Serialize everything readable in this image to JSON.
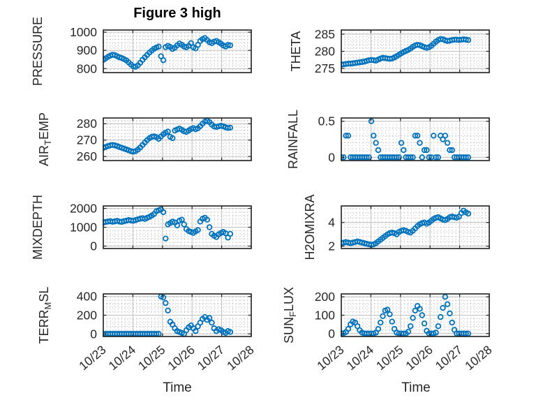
{
  "title": "Figure 3 high",
  "xlabel": "Time",
  "colors": {
    "marker": "#0072BD",
    "axis": "#202020",
    "text": "#262626",
    "grid": "#c2c2c2",
    "minor_grid": "#aeaeae"
  },
  "chart_data": {
    "type": "scatter",
    "title": "Figure 3 high",
    "xlabel": "Time",
    "x_unit": "days since 10/23 00:00",
    "xlim": [
      0,
      5
    ],
    "x_tick_labels": [
      "10/23",
      "10/24",
      "10/25",
      "10/26",
      "10/27",
      "10/28"
    ],
    "grid": "major solid + minor dotted",
    "x": [
      0.0,
      0.078,
      0.156,
      0.234,
      0.312,
      0.39,
      0.468,
      0.546,
      0.624,
      0.702,
      0.78,
      0.858,
      0.936,
      1.014,
      1.092,
      1.17,
      1.248,
      1.326,
      1.404,
      1.482,
      1.56,
      1.638,
      1.716,
      1.794,
      1.872,
      1.95,
      2.028,
      2.106,
      2.184,
      2.262,
      2.34,
      2.418,
      2.496,
      2.574,
      2.652,
      2.73,
      2.808,
      2.886,
      2.964,
      3.042,
      3.12,
      3.198,
      3.276,
      3.354,
      3.432,
      3.51,
      3.588,
      3.666,
      3.744,
      3.822,
      3.9,
      3.978,
      4.056,
      4.134,
      4.212,
      4.29
    ],
    "subplots": [
      {
        "name": "PRESSURE",
        "label": "PRESSURE",
        "col": 0,
        "row": 0,
        "ylabel_parts": [
          {
            "text": "PRESSURE"
          }
        ],
        "yticks": [
          800,
          900,
          1000
        ],
        "ylim": [
          778,
          1012
        ],
        "y": [
          848,
          856,
          864,
          871,
          876,
          874,
          868,
          862,
          858,
          852,
          845,
          834,
          822,
          812,
          810,
          818,
          832,
          848,
          862,
          875,
          888,
          899,
          909,
          916,
          921,
          868,
          846,
          918,
          925,
          919,
          908,
          915,
          928,
          938,
          931,
          921,
          917,
          925,
          940,
          917,
          911,
          930,
          952,
          962,
          968,
          957,
          945,
          940,
          948,
          952,
          945,
          937,
          927,
          921,
          930,
          928
        ]
      },
      {
        "name": "AIR_TEMP",
        "label": "AIR_TEMP",
        "col": 0,
        "row": 1,
        "ylabel_parts": [
          {
            "text": "AIR"
          },
          {
            "text": "T",
            "sub": true
          },
          {
            "text": "EMP"
          }
        ],
        "yticks": [
          260,
          270,
          280
        ],
        "ylim": [
          257.5,
          283.5
        ],
        "y": [
          265.2,
          265.8,
          266.3,
          266.8,
          267.0,
          266.8,
          266.3,
          265.8,
          265.3,
          264.8,
          264.3,
          263.8,
          263.2,
          262.9,
          263.3,
          264.2,
          265.5,
          267.0,
          268.5,
          270.0,
          271.2,
          272.0,
          272.3,
          271.8,
          270.8,
          272.2,
          273.5,
          274.5,
          275.2,
          272.0,
          271.2,
          275.8,
          276.5,
          277.0,
          276.3,
          275.4,
          275.0,
          275.8,
          276.8,
          277.3,
          276.6,
          277.2,
          278.5,
          280.0,
          281.3,
          281.8,
          281.0,
          279.5,
          278.3,
          278.0,
          278.4,
          278.8,
          278.4,
          277.8,
          277.4,
          277.6
        ]
      },
      {
        "name": "MIXDEPTH",
        "label": "MIXDEPTH",
        "col": 0,
        "row": 2,
        "ylabel_parts": [
          {
            "text": "MIXDEPTH"
          }
        ],
        "yticks": [
          0,
          1000,
          2000
        ],
        "ylim": [
          -130,
          2130
        ],
        "y": [
          1250,
          1280,
          1300,
          1320,
          1290,
          1310,
          1340,
          1300,
          1280,
          1320,
          1350,
          1380,
          1360,
          1340,
          1380,
          1420,
          1450,
          1480,
          1440,
          1500,
          1550,
          1620,
          1700,
          1850,
          1900,
          1950,
          1800,
          400,
          1150,
          1220,
          1300,
          1250,
          1100,
          1350,
          1400,
          1150,
          900,
          800,
          750,
          700,
          780,
          850,
          1300,
          1450,
          1500,
          1400,
          1000,
          650,
          550,
          480,
          620,
          700,
          750,
          680,
          450,
          650
        ]
      },
      {
        "name": "TERR_MSL",
        "label": "TERR_MSL",
        "col": 0,
        "row": 3,
        "ylabel_parts": [
          {
            "text": "TERR"
          },
          {
            "text": "M",
            "sub": true
          },
          {
            "text": "SL"
          }
        ],
        "yticks": [
          0,
          200,
          400
        ],
        "ylim": [
          -28,
          428
        ],
        "y": [
          0,
          0,
          0,
          0,
          0,
          0,
          0,
          0,
          0,
          0,
          0,
          0,
          0,
          0,
          0,
          0,
          0,
          0,
          0,
          0,
          0,
          0,
          0,
          0,
          0,
          400,
          390,
          330,
          250,
          130,
          100,
          60,
          30,
          20,
          10,
          0,
          40,
          70,
          90,
          60,
          30,
          80,
          120,
          160,
          180,
          150,
          170,
          120,
          60,
          30,
          50,
          40,
          20,
          10,
          30,
          20
        ]
      },
      {
        "name": "THETA",
        "label": "THETA",
        "col": 1,
        "row": 0,
        "ylabel_parts": [
          {
            "text": "THETA"
          }
        ],
        "yticks": [
          275,
          280,
          285
        ],
        "ylim": [
          273.8,
          286.2
        ],
        "y": [
          276.1,
          276.2,
          276.3,
          276.4,
          276.4,
          276.5,
          276.6,
          276.7,
          276.8,
          276.9,
          277.0,
          277.2,
          277.4,
          277.5,
          277.4,
          277.3,
          277.6,
          277.9,
          278.1,
          278.0,
          277.9,
          277.8,
          277.9,
          278.2,
          278.6,
          279.0,
          279.4,
          279.8,
          280.1,
          280.4,
          280.8,
          281.3,
          281.7,
          281.9,
          281.8,
          281.5,
          281.2,
          281.0,
          281.2,
          281.6,
          282.2,
          282.8,
          283.3,
          283.6,
          283.5,
          283.2,
          283.0,
          283.1,
          283.3,
          283.4,
          283.4,
          283.3,
          283.4,
          283.5,
          283.4,
          283.3
        ]
      },
      {
        "name": "RAINFALL",
        "label": "RAINFALL",
        "col": 1,
        "row": 1,
        "ylabel_parts": [
          {
            "text": "RAINFALL"
          }
        ],
        "yticks": [
          0,
          0.5
        ],
        "ylim": [
          -0.045,
          0.545
        ],
        "y": [
          0,
          0,
          0.3,
          0.3,
          0,
          0,
          0,
          0,
          0,
          0,
          0,
          0,
          0,
          0.5,
          0.3,
          0.2,
          0.1,
          0,
          0,
          0,
          0,
          0,
          0,
          0,
          0,
          0,
          0.2,
          0.1,
          0,
          0,
          0,
          0,
          0.3,
          0.3,
          0.2,
          0,
          0.1,
          0.1,
          0,
          0,
          0.3,
          0,
          0,
          0.3,
          0.25,
          0.3,
          0.2,
          0.1,
          0.1,
          0,
          0,
          0,
          0,
          0,
          0,
          0
        ]
      },
      {
        "name": "H2OMIXRA",
        "label": "H2OMIXRA",
        "col": 1,
        "row": 2,
        "ylabel_parts": [
          {
            "text": "H2OMIXRA"
          }
        ],
        "yticks": [
          2,
          4
        ],
        "ylim": [
          1.8,
          5.4
        ],
        "y": [
          2.25,
          2.3,
          2.35,
          2.3,
          2.25,
          2.3,
          2.35,
          2.4,
          2.35,
          2.3,
          2.25,
          2.2,
          2.15,
          2.1,
          2.15,
          2.25,
          2.4,
          2.55,
          2.7,
          2.85,
          3.0,
          3.1,
          3.15,
          3.1,
          3.0,
          3.2,
          3.3,
          3.35,
          3.3,
          3.2,
          3.15,
          3.3,
          3.5,
          3.7,
          3.85,
          3.95,
          4.0,
          3.9,
          4.0,
          4.15,
          4.3,
          4.4,
          4.45,
          4.35,
          4.25,
          4.2,
          4.3,
          4.45,
          4.5,
          4.45,
          4.4,
          4.5,
          4.8,
          5.0,
          4.85,
          4.75
        ]
      },
      {
        "name": "SUN_FLUX",
        "label": "SUN_FLUX",
        "col": 1,
        "row": 3,
        "ylabel_parts": [
          {
            "text": "SUN"
          },
          {
            "text": "F",
            "sub": true
          },
          {
            "text": "LUX"
          }
        ],
        "yticks": [
          0,
          100,
          200
        ],
        "ylim": [
          -16,
          216
        ],
        "y": [
          0,
          2,
          8,
          25,
          50,
          65,
          60,
          40,
          18,
          5,
          0,
          0,
          0,
          0,
          0,
          5,
          25,
          60,
          95,
          125,
          130,
          105,
          65,
          25,
          5,
          0,
          0,
          0,
          0,
          10,
          40,
          85,
          125,
          150,
          135,
          100,
          55,
          15,
          0,
          0,
          0,
          5,
          40,
          90,
          140,
          200,
          160,
          110,
          60,
          20,
          0,
          0,
          0,
          0,
          0,
          0
        ]
      }
    ]
  }
}
